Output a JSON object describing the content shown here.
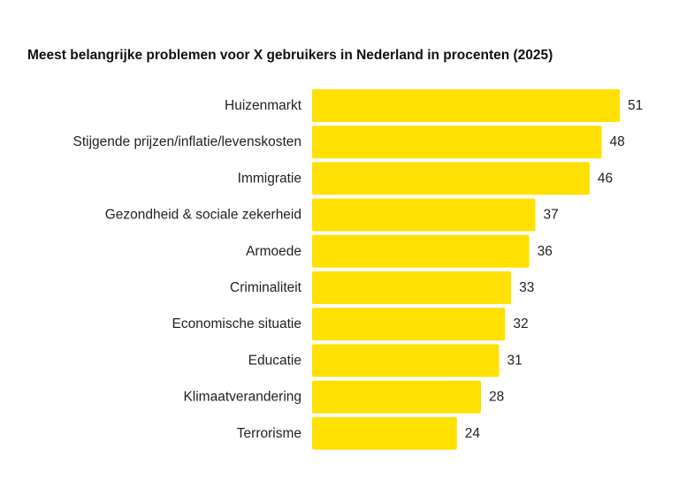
{
  "chart_data": {
    "type": "bar",
    "orientation": "horizontal",
    "title": "Meest belangrijke problemen voor X gebruikers in Nederland in procenten (2025)",
    "categories": [
      "Huizenmarkt",
      "Stijgende prijzen/inflatie/levenskosten",
      "Immigratie",
      "Gezondheid & sociale zekerheid",
      "Armoede",
      "Criminaliteit",
      "Economische situatie",
      "Educatie",
      "Klimaatverandering",
      "Terrorisme"
    ],
    "values": [
      51,
      48,
      46,
      37,
      36,
      33,
      32,
      31,
      28,
      24
    ],
    "value_labels": [
      "51",
      "48",
      "46",
      "37",
      "36",
      "33",
      "32",
      "31",
      "28",
      "24"
    ],
    "xlim": [
      0,
      51
    ],
    "grid": false,
    "bar_color": "#FFE000"
  }
}
